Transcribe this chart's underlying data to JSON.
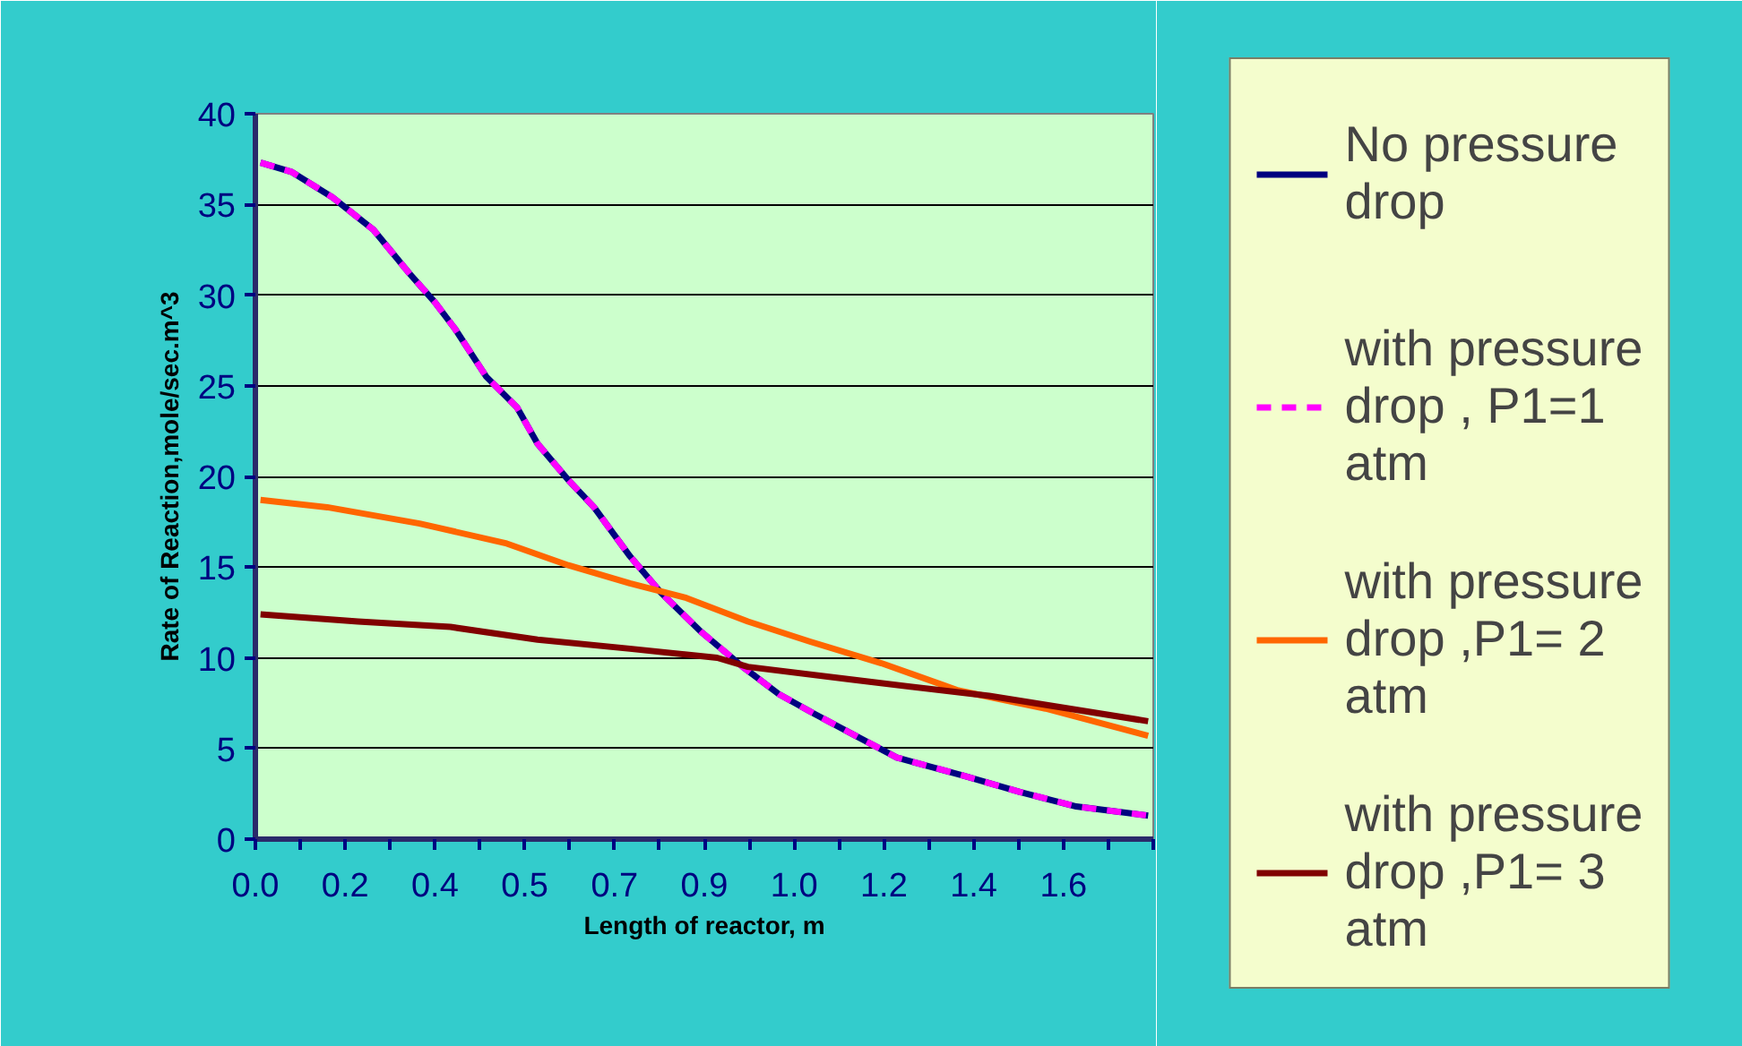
{
  "chart_data": {
    "type": "line",
    "xlabel": "Length of reactor, m",
    "ylabel": "Rate of Reaction,mole/sec.m^3",
    "xlim": [
      0,
      1.75
    ],
    "ylim": [
      0,
      40
    ],
    "yticks": [
      0,
      5,
      10,
      15,
      20,
      25,
      30,
      35,
      40
    ],
    "xticks": [
      {
        "value": 0,
        "label": "0.0"
      },
      {
        "value": 0.0875,
        "label": null
      },
      {
        "value": 0.175,
        "label": "0.2"
      },
      {
        "value": 0.2625,
        "label": null
      },
      {
        "value": 0.35,
        "label": "0.4"
      },
      {
        "value": 0.4375,
        "label": null
      },
      {
        "value": 0.525,
        "label": "0.5"
      },
      {
        "value": 0.6125,
        "label": null
      },
      {
        "value": 0.7,
        "label": "0.7"
      },
      {
        "value": 0.7875,
        "label": null
      },
      {
        "value": 0.875,
        "label": "0.9"
      },
      {
        "value": 0.9625,
        "label": null
      },
      {
        "value": 1.05,
        "label": "1.0"
      },
      {
        "value": 1.1375,
        "label": null
      },
      {
        "value": 1.225,
        "label": "1.2"
      },
      {
        "value": 1.3125,
        "label": null
      },
      {
        "value": 1.4,
        "label": "1.4"
      },
      {
        "value": 1.4875,
        "label": null
      },
      {
        "value": 1.575,
        "label": "1.6"
      },
      {
        "value": 1.6625,
        "label": null
      },
      {
        "value": 1.75,
        "label": null
      }
    ],
    "grid": "y",
    "legend": "right",
    "marker": "none",
    "series": [
      {
        "name": "No pressure drop",
        "color": "#000080",
        "line_style": "solid",
        "x": [
          0.01,
          0.07,
          0.15,
          0.23,
          0.3,
          0.35,
          0.39,
          0.45,
          0.51,
          0.55,
          0.61,
          0.66,
          0.73,
          0.79,
          0.87,
          0.95,
          1.02,
          1.09,
          1.17,
          1.25,
          1.38,
          1.49,
          1.6,
          1.74
        ],
        "values": [
          37.3,
          36.8,
          35.4,
          33.6,
          31.2,
          29.6,
          28.1,
          25.5,
          23.8,
          21.8,
          19.8,
          18.3,
          15.6,
          13.6,
          11.4,
          9.5,
          8.0,
          6.9,
          5.7,
          4.5,
          3.5,
          2.6,
          1.8,
          1.3
        ]
      },
      {
        "name": "with pressure drop , P1=1 atm",
        "color": "#ff00ff",
        "line_style": "dashed",
        "x": [
          0.01,
          0.07,
          0.15,
          0.23,
          0.3,
          0.35,
          0.39,
          0.45,
          0.51,
          0.55,
          0.61,
          0.66,
          0.73,
          0.79,
          0.87,
          0.95,
          1.02,
          1.09,
          1.17,
          1.25,
          1.38,
          1.49,
          1.6,
          1.74
        ],
        "values": [
          37.3,
          36.8,
          35.4,
          33.6,
          31.2,
          29.6,
          28.1,
          25.5,
          23.8,
          21.8,
          19.8,
          18.3,
          15.6,
          13.6,
          11.4,
          9.5,
          8.0,
          6.9,
          5.7,
          4.5,
          3.5,
          2.6,
          1.8,
          1.3
        ]
      },
      {
        "name": "with pressure drop ,P1= 2 atm",
        "color": "#ff6600",
        "line_style": "solid",
        "x": [
          0.01,
          0.14,
          0.32,
          0.49,
          0.61,
          0.73,
          0.84,
          0.96,
          1.08,
          1.22,
          1.37,
          1.54,
          1.74
        ],
        "values": [
          18.7,
          18.3,
          17.4,
          16.3,
          15.1,
          14.1,
          13.3,
          12.0,
          10.9,
          9.7,
          8.2,
          7.2,
          5.7
        ]
      },
      {
        "name": "with pressure drop ,P1= 3 atm",
        "color": "#800000",
        "line_style": "solid",
        "x": [
          0.01,
          0.2,
          0.38,
          0.55,
          0.73,
          0.9,
          0.96,
          1.19,
          1.43,
          1.74
        ],
        "values": [
          12.4,
          12.0,
          11.7,
          11.0,
          10.5,
          10.0,
          9.5,
          8.7,
          7.9,
          6.5
        ]
      }
    ]
  }
}
